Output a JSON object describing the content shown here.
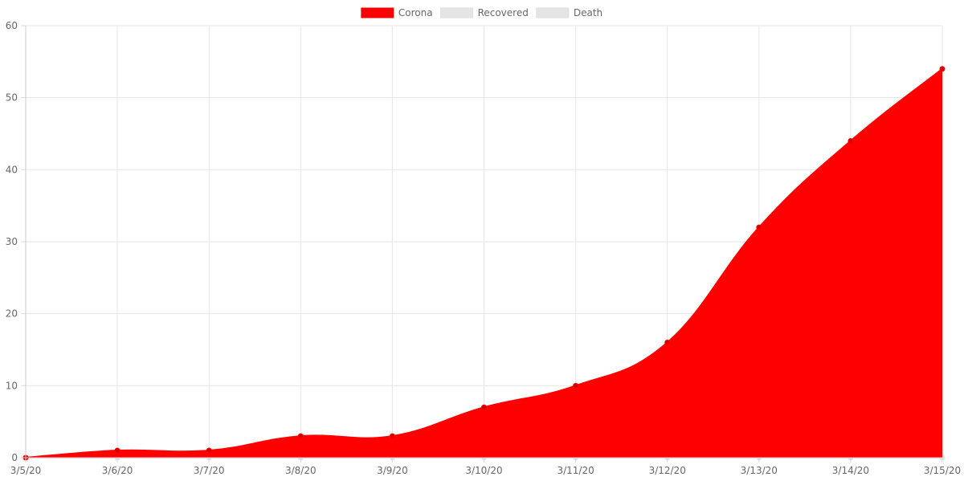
{
  "chart_data": {
    "type": "area",
    "title": "",
    "xlabel": "",
    "ylabel": "",
    "x": [
      "3/5/20",
      "3/6/20",
      "3/7/20",
      "3/8/20",
      "3/9/20",
      "3/10/20",
      "3/11/20",
      "3/12/20",
      "3/13/20",
      "3/14/20",
      "3/15/20"
    ],
    "ylim": [
      0,
      60
    ],
    "yticks": [
      0,
      10,
      20,
      30,
      40,
      50,
      60
    ],
    "grid": true,
    "legend_position": "top-center",
    "series": [
      {
        "name": "Corona",
        "color": "#ff0000",
        "values": [
          0,
          1,
          1,
          3,
          3,
          7,
          10,
          16,
          32,
          44,
          54
        ]
      },
      {
        "name": "Recovered",
        "color": "#e5e5e5",
        "values": [
          0,
          0,
          0,
          0,
          0,
          0,
          0,
          0,
          0,
          0,
          0
        ]
      },
      {
        "name": "Death",
        "color": "#e5e5e5",
        "values": [
          0,
          0,
          0,
          0,
          0,
          0,
          0,
          0,
          0,
          0,
          0
        ]
      }
    ]
  }
}
